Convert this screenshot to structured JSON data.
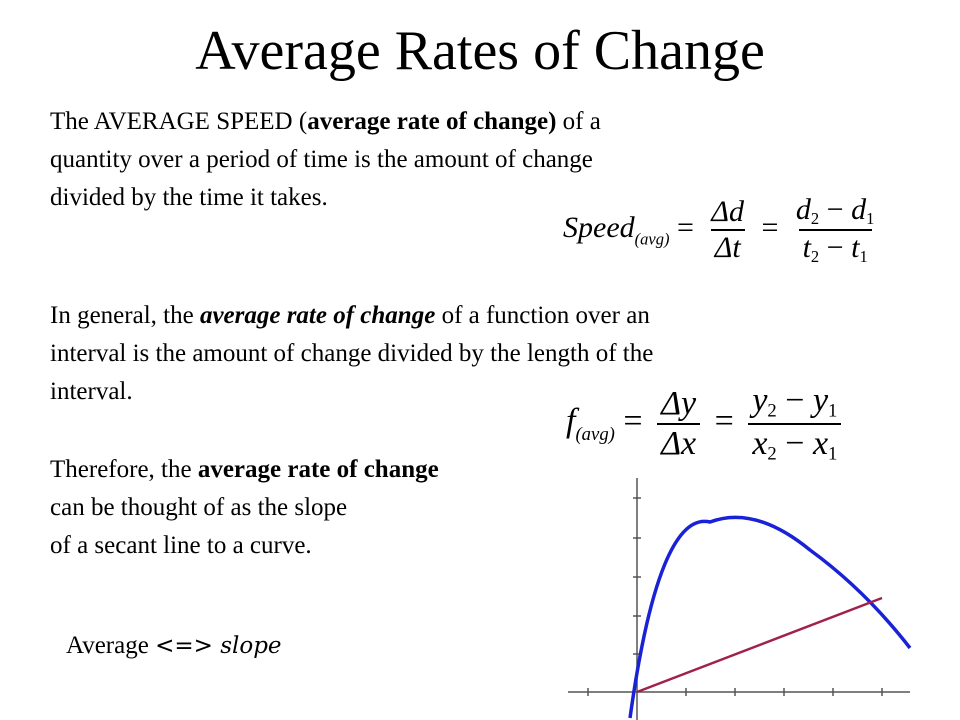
{
  "title": "Average Rates of Change",
  "p1": {
    "l1a": "The AVERAGE SPEED (",
    "l1b": "average rate of change)",
    "l1c": " of a",
    "l2": "quantity over a period of time is the amount of change",
    "l3": "divided by the time it takes."
  },
  "eq1": {
    "lhs": "Speed",
    "lhs_sub": "(avg)",
    "num1": "Δd",
    "den1": "Δt",
    "num2_a": "d",
    "num2_a_sub": "2",
    "num2_b": "d",
    "num2_b_sub": "1",
    "den2_a": "t",
    "den2_a_sub": "2",
    "den2_b": "t",
    "den2_b_sub": "1"
  },
  "p2": {
    "l1a": "In general, the ",
    "l1b": "average rate of change",
    "l1c": " of a function over an",
    "l2": "interval is the amount of change divided by the length of the",
    "l3": "interval."
  },
  "eq2": {
    "lhs": "f",
    "lhs_sub": "(avg)",
    "num1": "Δy",
    "den1": "Δx",
    "num2_a": "y",
    "num2_a_sub": "2",
    "num2_b": "y",
    "num2_b_sub": "1",
    "den2_a": "x",
    "den2_a_sub": "2",
    "den2_b": "x",
    "den2_b_sub": "1"
  },
  "p3": {
    "l1a": "Therefore, the ",
    "l1b": "average rate of change",
    "l2": "can be thought of as the slope",
    "l3": " of a secant line to a curve."
  },
  "avg_line": {
    "word": "Average ",
    "op": "<=>",
    "math": " slope"
  },
  "graph": {
    "curve_color": "#1a22d6",
    "secant_color": "#a0224a",
    "axis_color": "#555555"
  }
}
